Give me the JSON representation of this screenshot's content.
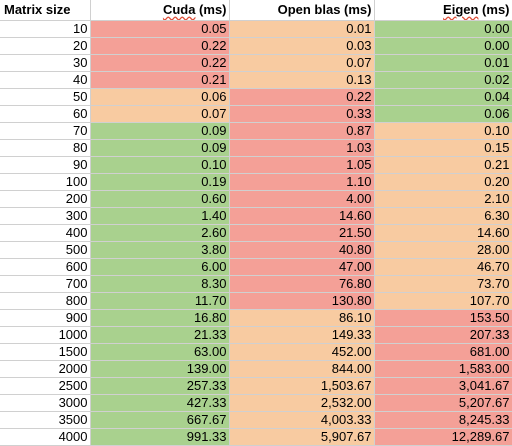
{
  "header": {
    "matrix_size": "Matrix size",
    "cuda_name": "Cuda",
    "cuda_unit": " (ms)",
    "openblas": "Open blas (ms)",
    "eigen_name": "Eigen",
    "eigen_unit": " (ms)"
  },
  "colors": {
    "green": "#a9d18e",
    "orange": "#f8cba1",
    "red": "#f4a097"
  },
  "rows": [
    {
      "size": "10",
      "cuda": "0.05",
      "cuda_c": "r",
      "blas": "0.01",
      "blas_c": "o",
      "eigen": "0.00",
      "eigen_c": "g"
    },
    {
      "size": "20",
      "cuda": "0.22",
      "cuda_c": "r",
      "blas": "0.03",
      "blas_c": "o",
      "eigen": "0.00",
      "eigen_c": "g"
    },
    {
      "size": "30",
      "cuda": "0.22",
      "cuda_c": "r",
      "blas": "0.07",
      "blas_c": "o",
      "eigen": "0.01",
      "eigen_c": "g"
    },
    {
      "size": "40",
      "cuda": "0.21",
      "cuda_c": "r",
      "blas": "0.13",
      "blas_c": "o",
      "eigen": "0.02",
      "eigen_c": "g"
    },
    {
      "size": "50",
      "cuda": "0.06",
      "cuda_c": "o",
      "blas": "0.22",
      "blas_c": "r",
      "eigen": "0.04",
      "eigen_c": "g"
    },
    {
      "size": "60",
      "cuda": "0.07",
      "cuda_c": "o",
      "blas": "0.33",
      "blas_c": "r",
      "eigen": "0.06",
      "eigen_c": "g"
    },
    {
      "size": "70",
      "cuda": "0.09",
      "cuda_c": "g",
      "blas": "0.87",
      "blas_c": "r",
      "eigen": "0.10",
      "eigen_c": "o"
    },
    {
      "size": "80",
      "cuda": "0.09",
      "cuda_c": "g",
      "blas": "1.03",
      "blas_c": "r",
      "eigen": "0.15",
      "eigen_c": "o"
    },
    {
      "size": "90",
      "cuda": "0.10",
      "cuda_c": "g",
      "blas": "1.05",
      "blas_c": "r",
      "eigen": "0.21",
      "eigen_c": "o"
    },
    {
      "size": "100",
      "cuda": "0.19",
      "cuda_c": "g",
      "blas": "1.10",
      "blas_c": "r",
      "eigen": "0.20",
      "eigen_c": "o"
    },
    {
      "size": "200",
      "cuda": "0.60",
      "cuda_c": "g",
      "blas": "4.00",
      "blas_c": "r",
      "eigen": "2.10",
      "eigen_c": "o"
    },
    {
      "size": "300",
      "cuda": "1.40",
      "cuda_c": "g",
      "blas": "14.60",
      "blas_c": "r",
      "eigen": "6.30",
      "eigen_c": "o"
    },
    {
      "size": "400",
      "cuda": "2.60",
      "cuda_c": "g",
      "blas": "21.50",
      "blas_c": "r",
      "eigen": "14.60",
      "eigen_c": "o"
    },
    {
      "size": "500",
      "cuda": "3.80",
      "cuda_c": "g",
      "blas": "40.80",
      "blas_c": "r",
      "eigen": "28.00",
      "eigen_c": "o"
    },
    {
      "size": "600",
      "cuda": "6.00",
      "cuda_c": "g",
      "blas": "47.00",
      "blas_c": "r",
      "eigen": "46.70",
      "eigen_c": "o"
    },
    {
      "size": "700",
      "cuda": "8.30",
      "cuda_c": "g",
      "blas": "76.80",
      "blas_c": "r",
      "eigen": "73.70",
      "eigen_c": "o"
    },
    {
      "size": "800",
      "cuda": "11.70",
      "cuda_c": "g",
      "blas": "130.80",
      "blas_c": "r",
      "eigen": "107.70",
      "eigen_c": "o"
    },
    {
      "size": "900",
      "cuda": "16.80",
      "cuda_c": "g",
      "blas": "86.10",
      "blas_c": "o",
      "eigen": "153.50",
      "eigen_c": "r"
    },
    {
      "size": "1000",
      "cuda": "21.33",
      "cuda_c": "g",
      "blas": "149.33",
      "blas_c": "o",
      "eigen": "207.33",
      "eigen_c": "r"
    },
    {
      "size": "1500",
      "cuda": "63.00",
      "cuda_c": "g",
      "blas": "452.00",
      "blas_c": "o",
      "eigen": "681.00",
      "eigen_c": "r"
    },
    {
      "size": "2000",
      "cuda": "139.00",
      "cuda_c": "g",
      "blas": "844.00",
      "blas_c": "o",
      "eigen": "1,583.00",
      "eigen_c": "r"
    },
    {
      "size": "2500",
      "cuda": "257.33",
      "cuda_c": "g",
      "blas": "1,503.67",
      "blas_c": "o",
      "eigen": "3,041.67",
      "eigen_c": "r"
    },
    {
      "size": "3000",
      "cuda": "427.33",
      "cuda_c": "g",
      "blas": "2,532.00",
      "blas_c": "o",
      "eigen": "5,207.67",
      "eigen_c": "r"
    },
    {
      "size": "3500",
      "cuda": "667.67",
      "cuda_c": "g",
      "blas": "4,003.33",
      "blas_c": "o",
      "eigen": "8,245.33",
      "eigen_c": "r"
    },
    {
      "size": "4000",
      "cuda": "991.33",
      "cuda_c": "g",
      "blas": "5,907.67",
      "blas_c": "o",
      "eigen": "12,289.67",
      "eigen_c": "r"
    }
  ]
}
